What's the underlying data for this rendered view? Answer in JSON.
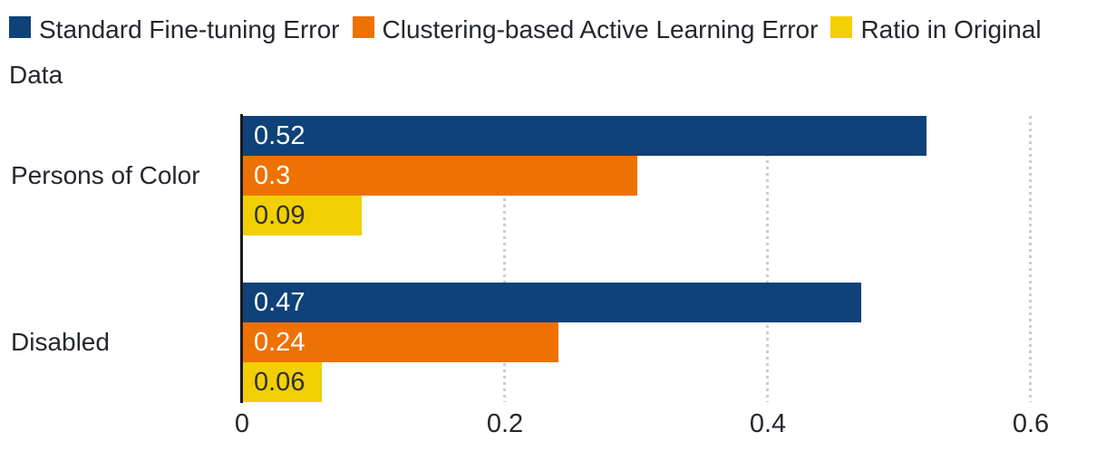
{
  "page": {
    "background": "#ffffff"
  },
  "chart_data": {
    "type": "bar",
    "orientation": "horizontal",
    "title": "",
    "categories": [
      "Persons of Color",
      "Disabled"
    ],
    "series": [
      {
        "name": "Standard Fine-tuning Error",
        "color": "#0e4278",
        "label_color": "#ffffff",
        "values": [
          0.52,
          0.47
        ],
        "labels": [
          "0.52",
          "0.47"
        ]
      },
      {
        "name": "Clustering-based Active Learning Error",
        "color": "#ee7104",
        "label_color": "#ffffff",
        "values": [
          0.3,
          0.24
        ],
        "labels": [
          "0.3",
          "0.24"
        ]
      },
      {
        "name": "Ratio in Original Data",
        "color": "#f2cf02",
        "label_color": "#2e3135",
        "values": [
          0.09,
          0.06
        ],
        "labels": [
          "0.09",
          "0.06"
        ]
      }
    ],
    "x_ticks": [
      {
        "value": 0.0,
        "label": "0"
      },
      {
        "value": 0.2,
        "label": "0.2"
      },
      {
        "value": 0.4,
        "label": "0.4"
      },
      {
        "value": 0.6,
        "label": "0.6"
      }
    ],
    "xlim": [
      0,
      0.65
    ],
    "grid": {
      "axis": "x",
      "style": "dotted",
      "color": "#cccccc"
    },
    "axis_color": "#1a1a1a",
    "legend_position": "top",
    "value_labels_inside": true
  }
}
